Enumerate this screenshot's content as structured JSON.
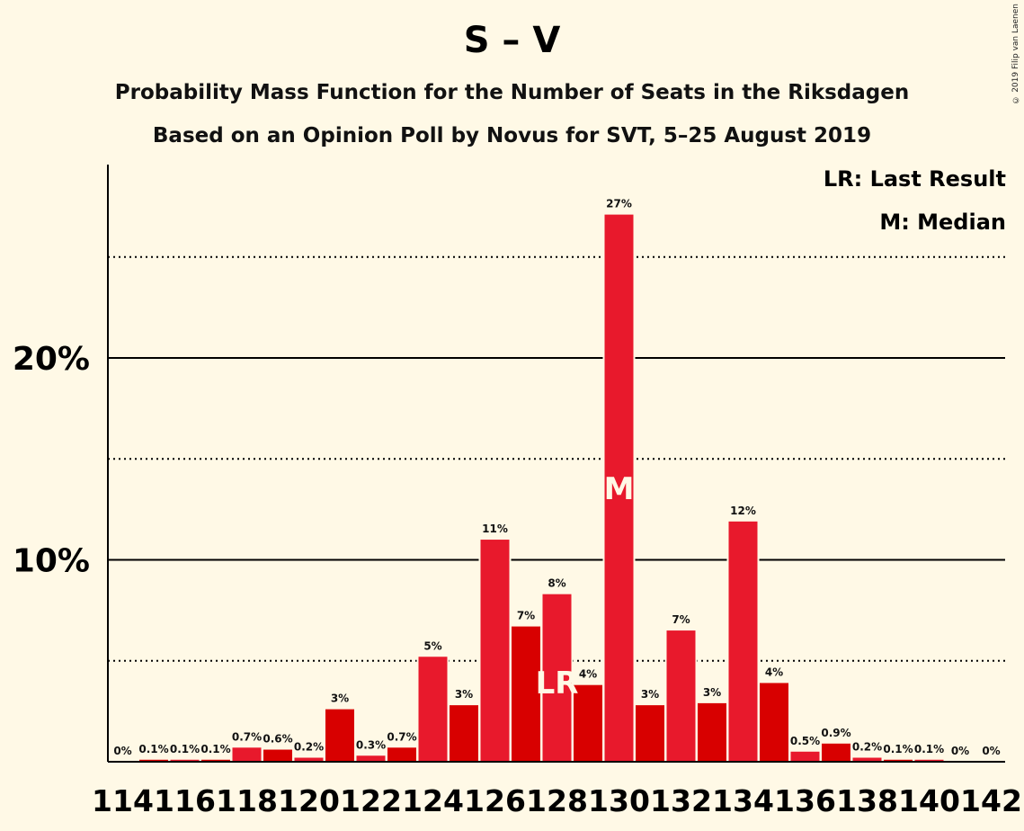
{
  "chart_data": {
    "type": "bar",
    "title": "S – V",
    "subtitle_lines": [
      "Probability Mass Function for the Number of Seats in the Riksdagen",
      "Based on an Opinion Poll by Novus for SVT, 5–25 August 2019"
    ],
    "legend": [
      "LR: Last Result",
      "M: Median"
    ],
    "legend_position": "top-right",
    "copyright": "© 2019 Filip van Laenen",
    "x": [
      114,
      115,
      116,
      117,
      118,
      119,
      120,
      121,
      122,
      123,
      124,
      125,
      126,
      127,
      128,
      129,
      130,
      131,
      132,
      133,
      134,
      135,
      136,
      137,
      138,
      139,
      140,
      141,
      142
    ],
    "values": [
      0,
      0.1,
      0.1,
      0.1,
      0.7,
      0.6,
      0.2,
      2.6,
      0.3,
      0.7,
      5.2,
      2.8,
      11,
      6.7,
      8.3,
      3.8,
      27.1,
      2.8,
      6.5,
      2.9,
      11.9,
      3.9,
      0.5,
      0.9,
      0.2,
      0.1,
      0.1,
      0,
      0
    ],
    "data_labels": [
      "0%",
      "0.1%",
      "0.1%",
      "0.1%",
      "0.7%",
      "0.6%",
      "0.2%",
      "3%",
      "0.3%",
      "0.7%",
      "5%",
      "3%",
      "11%",
      "7%",
      "8%",
      "4%",
      "27%",
      "3%",
      "7%",
      "3%",
      "12%",
      "4%",
      "0.5%",
      "0.9%",
      "0.2%",
      "0.1%",
      "0.1%",
      "0%",
      "0%"
    ],
    "x_tick_labels": [
      "114",
      "116",
      "118",
      "120",
      "122",
      "124",
      "126",
      "128",
      "130",
      "132",
      "134",
      "136",
      "138",
      "140",
      "142"
    ],
    "y_tick_labels": [
      "10%",
      "20%"
    ],
    "ylim": [
      0,
      29.6
    ],
    "gridlines_solid": [
      10,
      20
    ],
    "gridlines_dotted": [
      5,
      15,
      25
    ],
    "last_result": {
      "seat": 128,
      "label": "LR"
    },
    "median": {
      "seat": 130,
      "label": "M"
    },
    "colors": {
      "bar_even": "#e8192c",
      "bar_odd": "#d80000",
      "background": "#fff9e6",
      "marker_text": "#fff9e6"
    }
  }
}
